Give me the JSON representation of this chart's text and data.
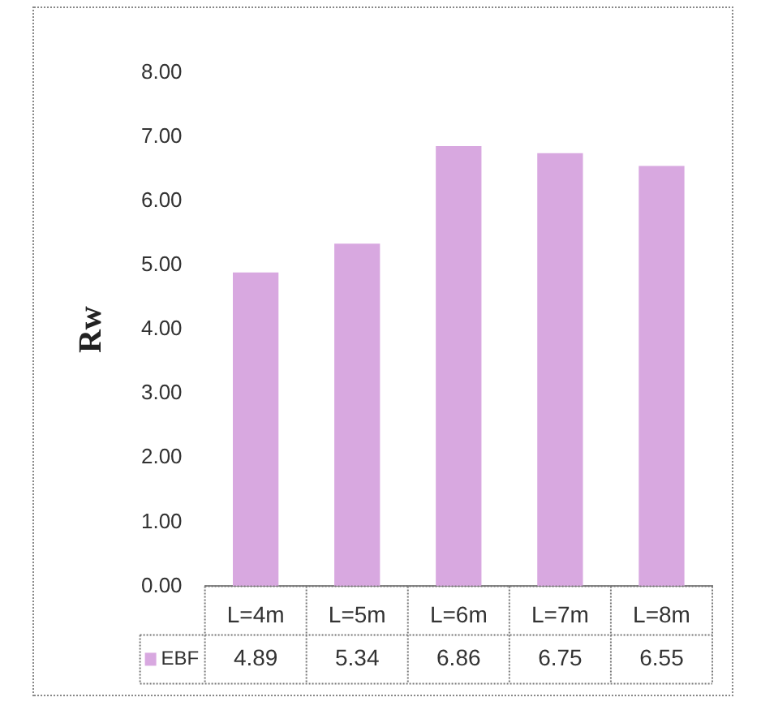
{
  "chart_data": {
    "type": "bar",
    "ylabel": "Rw",
    "categories": [
      "L=4m",
      "L=5m",
      "L=6m",
      "L=7m",
      "L=8m"
    ],
    "series": [
      {
        "name": "EBF",
        "color": "#d8a8e0",
        "values": [
          4.89,
          5.34,
          6.86,
          6.75,
          6.55
        ]
      }
    ],
    "ylim": [
      0,
      8
    ],
    "yticks": [
      {
        "value": 0,
        "label": "0.00"
      },
      {
        "value": 1,
        "label": "1.00"
      },
      {
        "value": 2,
        "label": "2.00"
      },
      {
        "value": 3,
        "label": "3.00"
      },
      {
        "value": 4,
        "label": "4.00"
      },
      {
        "value": 5,
        "label": "5.00"
      },
      {
        "value": 6,
        "label": "6.00"
      },
      {
        "value": 7,
        "label": "7.00"
      },
      {
        "value": 8,
        "label": "8.00"
      }
    ],
    "grid": false,
    "legend": "bottom",
    "data_labels": true
  }
}
